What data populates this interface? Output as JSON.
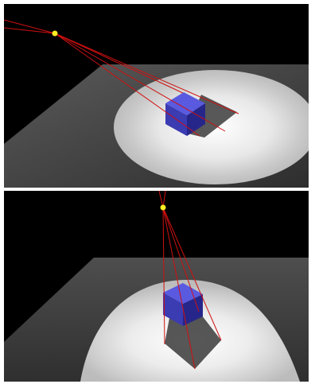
{
  "scene": {
    "background_color": "#000000",
    "floor_color": "#3a3a3a",
    "spotlight_color": "#ffffff",
    "cube_color": "#3a3ab0",
    "ray_color": "#d01010",
    "light_color": "#ffee22"
  },
  "panels": [
    {
      "name": "top-view"
    },
    {
      "name": "bottom-view"
    }
  ]
}
